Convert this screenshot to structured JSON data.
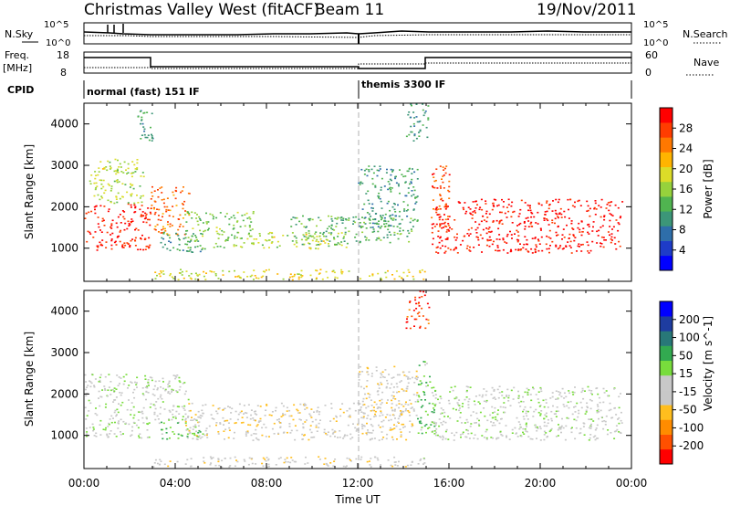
{
  "header": {
    "station": "Christmas Valley West (fitACF)",
    "beam": "Beam 11",
    "date": "19/Nov/2011"
  },
  "noise_panel": {
    "left_label": "N.Sky",
    "right_label": "N.Search",
    "left_ticks": [
      "10^5",
      "10^0"
    ],
    "right_ticks": [
      "10^5",
      "10^0"
    ]
  },
  "freq_panel": {
    "left_label_line1": "Freq.",
    "left_label_line2": "[MHz]",
    "right_label": "Nave",
    "left_ticks": [
      "18",
      "8"
    ],
    "right_ticks": [
      "60",
      "0"
    ]
  },
  "cpid_panel": {
    "label": "CPID",
    "segments": [
      {
        "start_hour": 0,
        "end_hour": 12,
        "text": "normal (fast) 151 IF"
      },
      {
        "start_hour": 12,
        "end_hour": 24,
        "text": "themis 3300 IF"
      }
    ]
  },
  "colors": {
    "power_scale": [
      "#0000ff",
      "#1e3cc8",
      "#2e6eaa",
      "#3c9678",
      "#50b450",
      "#96d23c",
      "#dcdc28",
      "#ffb400",
      "#ff7800",
      "#ff3c00",
      "#ff0000"
    ],
    "velocity_scale": [
      "#ff0000",
      "#ff5000",
      "#ff8c00",
      "#ffbe1e",
      "#c8c8c8",
      "#c8c8c8",
      "#78dc3c",
      "#32aa50",
      "#287878",
      "#1e3ca0",
      "#0000ff"
    ]
  },
  "chart_data": [
    {
      "type": "heatmap",
      "name": "power",
      "ylabel": "Slant Range [km]",
      "yticks": [
        1000,
        2000,
        3000,
        4000
      ],
      "ylim": [
        200,
        4500
      ],
      "xlim": [
        0,
        24
      ],
      "colorbar": {
        "label": "Power [dB]",
        "ticks": [
          "4",
          "8",
          "12",
          "16",
          "20",
          "24",
          "28"
        ],
        "range": [
          0,
          30
        ]
      },
      "regions": [
        {
          "x0": 0.0,
          "x1": 2.9,
          "y0": 950,
          "y1": 2100,
          "value": 28
        },
        {
          "x0": 0.2,
          "x1": 2.6,
          "y0": 2100,
          "y1": 3200,
          "value": 16
        },
        {
          "x0": 2.9,
          "x1": 4.6,
          "y0": 1300,
          "y1": 2500,
          "value": 24
        },
        {
          "x0": 3.3,
          "x1": 5.2,
          "y0": 900,
          "y1": 1400,
          "value": 10
        },
        {
          "x0": 4.4,
          "x1": 7.4,
          "y0": 1000,
          "y1": 1900,
          "value": 14
        },
        {
          "x0": 6.5,
          "x1": 11.5,
          "y0": 1000,
          "y1": 1400,
          "value": 16
        },
        {
          "x0": 9.0,
          "x1": 14.4,
          "y0": 1100,
          "y1": 1800,
          "value": 12
        },
        {
          "x0": 12.0,
          "x1": 14.6,
          "y0": 1500,
          "y1": 3000,
          "value": 10
        },
        {
          "x0": 3.0,
          "x1": 15.0,
          "y0": 250,
          "y1": 500,
          "value": 18
        },
        {
          "x0": 15.2,
          "x1": 23.6,
          "y0": 900,
          "y1": 2200,
          "value": 29
        },
        {
          "x0": 15.2,
          "x1": 16.0,
          "y0": 1500,
          "y1": 3000,
          "value": 26
        },
        {
          "x0": 14.1,
          "x1": 15.1,
          "y0": 3600,
          "y1": 4500,
          "value": 10
        },
        {
          "x0": 2.3,
          "x1": 3.0,
          "y0": 3600,
          "y1": 4400,
          "value": 10
        }
      ]
    },
    {
      "type": "heatmap",
      "name": "velocity",
      "ylabel": "Slant Range [km]",
      "xlabel": "Time UT",
      "yticks": [
        1000,
        2000,
        3000,
        4000
      ],
      "ylim": [
        200,
        4500
      ],
      "xlim": [
        0,
        24
      ],
      "xticks": [
        "00:00",
        "04:00",
        "08:00",
        "12:00",
        "16:00",
        "20:00",
        "00:00"
      ],
      "colorbar": {
        "label": "Velocity [m s^-1]",
        "ticks": [
          "200",
          "100",
          "50",
          "15",
          "-15",
          "-50",
          "-100",
          "-200"
        ],
        "range": [
          -250,
          250
        ]
      },
      "regions": [
        {
          "x0": 0.0,
          "x1": 2.9,
          "y0": 950,
          "y1": 2500,
          "value": 0
        },
        {
          "x0": 2.9,
          "x1": 4.6,
          "y0": 1300,
          "y1": 2500,
          "value": 0
        },
        {
          "x0": 3.3,
          "x1": 5.2,
          "y0": 900,
          "y1": 1400,
          "value": 60
        },
        {
          "x0": 4.4,
          "x1": 14.4,
          "y0": 900,
          "y1": 1800,
          "value": -40
        },
        {
          "x0": 12.0,
          "x1": 14.6,
          "y0": 1500,
          "y1": 2700,
          "value": -40
        },
        {
          "x0": 3.0,
          "x1": 15.0,
          "y0": 250,
          "y1": 500,
          "value": -30
        },
        {
          "x0": 15.2,
          "x1": 23.6,
          "y0": 900,
          "y1": 2200,
          "value": 0
        },
        {
          "x0": 14.6,
          "x1": 15.4,
          "y0": 1000,
          "y1": 2800,
          "value": 60
        },
        {
          "x0": 14.1,
          "x1": 15.1,
          "y0": 3600,
          "y1": 4500,
          "value": -200
        }
      ]
    }
  ]
}
